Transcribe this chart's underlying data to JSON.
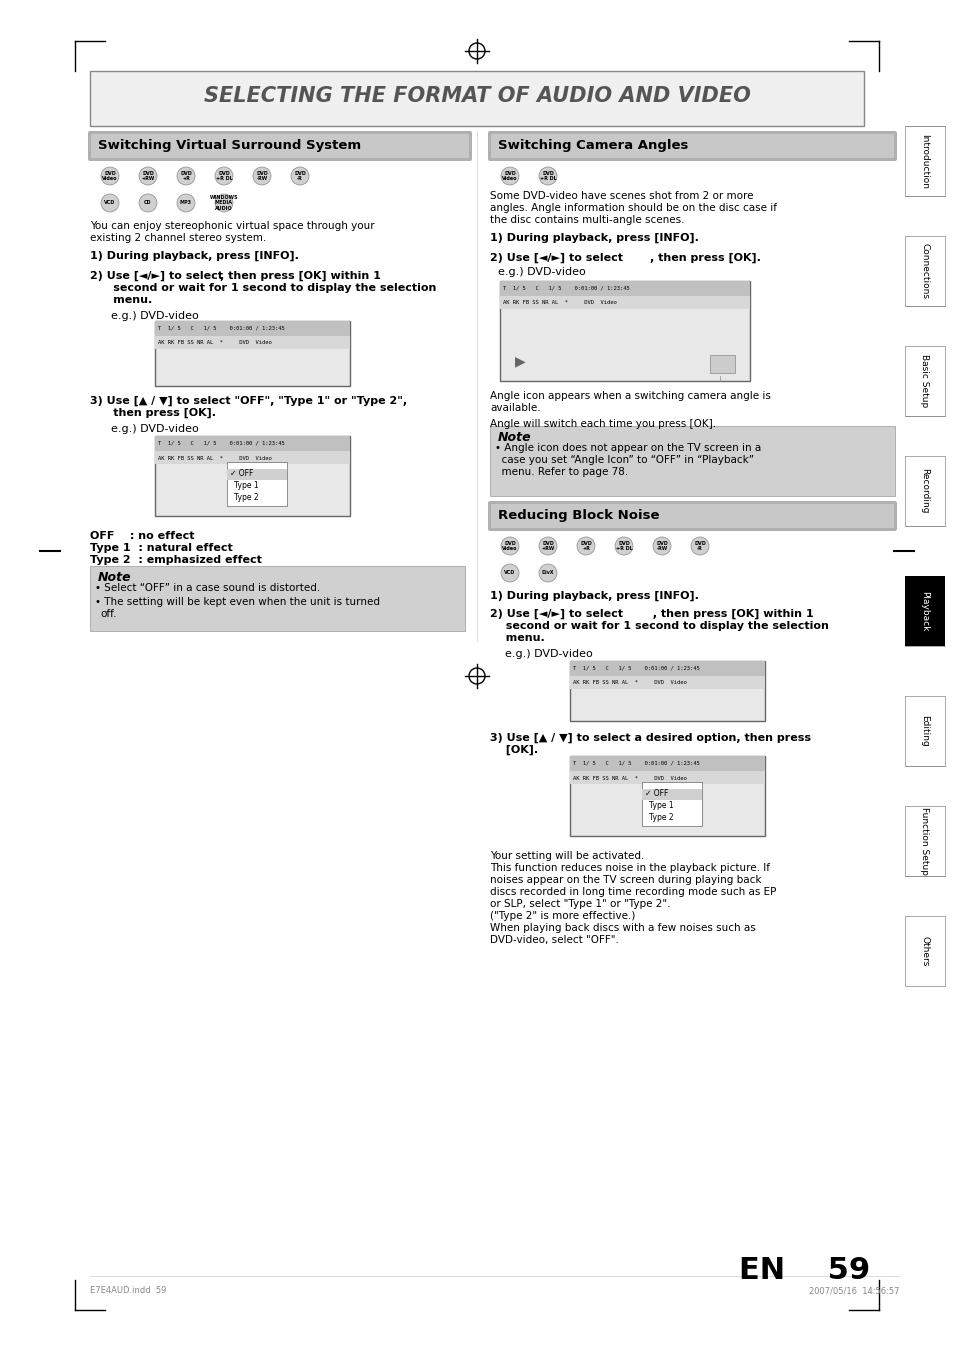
{
  "page_bg": "#ffffff",
  "title_text": "SELECTING THE FORMAT OF AUDIO AND VIDEO",
  "title_bg": "#e8e8e8",
  "title_color": "#555555",
  "left_section_header": "Switching Virtual Surround System",
  "right_section_header": "Switching Camera Angles",
  "reducing_noise_header": "Reducing Block Noise",
  "sidebar_labels": [
    "Introduction",
    "Connections",
    "Basic Setup",
    "Recording",
    "Playback",
    "Editing",
    "Function Setup",
    "Others"
  ],
  "playback_highlight": "#000000",
  "header_bg_gradient_start": "#c0c0c0",
  "header_bg_gradient_end": "#a0a0a0",
  "note_bg": "#d0d0d0",
  "screen_bg": "#e8e8e8",
  "screen_border": "#888888",
  "footer_text": "EN    59",
  "footer_small_left": "E7E4AUD.indd  59",
  "footer_small_right": "2007/05/16  14:56:57"
}
